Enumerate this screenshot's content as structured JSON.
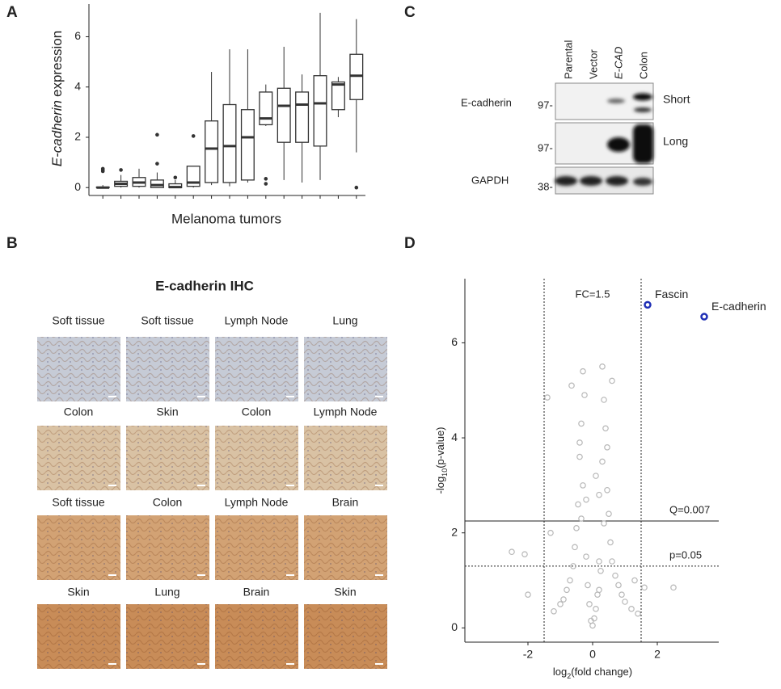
{
  "panels": [
    "A",
    "B",
    "C",
    "D"
  ],
  "chart_data": [
    {
      "type": "box",
      "xlabel": "Melanoma tumors",
      "ylabel": [
        "E-cadherin",
        "expression"
      ],
      "categories": [
        null,
        null,
        null,
        null,
        null,
        null,
        null,
        null,
        null,
        null,
        null,
        null,
        null,
        null,
        null
      ],
      "color": "#333333",
      "ylim": [
        -0.25,
        7.3
      ],
      "yticks": [
        0,
        2,
        4,
        6
      ],
      "boxes": [
        {
          "min": 0,
          "q1": 0,
          "median": 0,
          "q3": 0.02,
          "max": 0.1,
          "outliers": [
            0.65,
            0.7,
            0.75
          ]
        },
        {
          "min": 0,
          "q1": 0.05,
          "median": 0.15,
          "q3": 0.25,
          "max": 0.5,
          "outliers": [
            0.7
          ]
        },
        {
          "min": 0,
          "q1": 0.05,
          "median": 0.2,
          "q3": 0.4,
          "max": 0.75,
          "outliers": []
        },
        {
          "min": 0,
          "q1": 0,
          "median": 0.1,
          "q3": 0.3,
          "max": 0.6,
          "outliers": [
            0.95,
            2.1
          ]
        },
        {
          "min": 0,
          "q1": 0,
          "median": 0.02,
          "q3": 0.15,
          "max": 0.3,
          "outliers": [
            0.4
          ]
        },
        {
          "min": 0,
          "q1": 0.05,
          "median": 0.2,
          "q3": 0.85,
          "max": 0.85,
          "outliers": [
            2.05
          ]
        },
        {
          "min": 0.1,
          "q1": 0.2,
          "median": 1.55,
          "q3": 2.65,
          "max": 4.6,
          "outliers": []
        },
        {
          "min": 0.05,
          "q1": 0.2,
          "median": 1.65,
          "q3": 3.3,
          "max": 5.5,
          "outliers": []
        },
        {
          "min": 0.2,
          "q1": 0.3,
          "median": 2.0,
          "q3": 3.1,
          "max": 5.5,
          "outliers": []
        },
        {
          "min": 2.45,
          "q1": 2.5,
          "median": 2.75,
          "q3": 3.8,
          "max": 4.1,
          "outliers": [
            0.15,
            0.35
          ]
        },
        {
          "min": 0.3,
          "q1": 1.8,
          "median": 3.25,
          "q3": 3.95,
          "max": 5.6,
          "outliers": []
        },
        {
          "min": 0.2,
          "q1": 1.8,
          "median": 3.3,
          "q3": 3.8,
          "max": 4.5,
          "outliers": []
        },
        {
          "min": 0.3,
          "q1": 1.65,
          "median": 3.35,
          "q3": 4.45,
          "max": 6.95,
          "outliers": []
        },
        {
          "min": 2.8,
          "q1": 3.1,
          "median": 4.1,
          "q3": 4.2,
          "max": 4.4,
          "outliers": []
        },
        {
          "min": 1.4,
          "q1": 3.5,
          "median": 4.45,
          "q3": 5.3,
          "max": 6.7,
          "outliers": [
            0
          ]
        }
      ]
    },
    {
      "type": "scatter",
      "xlabel": [
        "log",
        "2",
        "(fold change)"
      ],
      "ylabel": [
        "-log",
        "10",
        "(p-value)"
      ],
      "xlim": [
        -3.95,
        3.9
      ],
      "ylim": [
        -0.3,
        7.35
      ],
      "xticks": [
        -2,
        0,
        2
      ],
      "yticks": [
        0,
        2,
        4,
        6
      ],
      "vlines": [
        -1.5,
        1.5
      ],
      "vline_label": "FC=1.5",
      "hlines": [
        {
          "value": 2.25,
          "label": "Q=0.007",
          "style": "solid"
        },
        {
          "value": 1.3,
          "label": "p=0.05",
          "style": "dashed"
        }
      ],
      "series": [
        {
          "color": "#b8b8b8",
          "x": [
            -0.3,
            -0.25,
            -0.35,
            -0.4,
            -0.3,
            -0.45,
            -0.5,
            -0.55,
            -0.35,
            -0.6,
            -0.7,
            -0.8,
            -0.9,
            -1.0,
            -1.2,
            -0.2,
            -0.1,
            0,
            0.1,
            0.2,
            0.05,
            -0.05,
            0.3,
            0.35,
            0.4,
            0.3,
            0.45,
            0.5,
            0.35,
            0.55,
            0.6,
            0.7,
            0.8,
            0.9,
            1.0,
            1.2,
            1.4,
            0.25,
            0.2,
            -0.15,
            0.15,
            -0.4,
            0.45,
            -1.4,
            -2.5,
            -2.1,
            -2.0,
            2.5,
            -1.3,
            1.6,
            0.2,
            0.1,
            -0.2,
            0.6,
            -0.65,
            1.3
          ],
          "y": [
            5.4,
            4.9,
            4.3,
            3.6,
            3.0,
            2.6,
            2.1,
            1.7,
            2.3,
            1.3,
            1.0,
            0.8,
            0.6,
            0.5,
            0.35,
            1.5,
            0.5,
            0.05,
            0.4,
            1.4,
            0.2,
            0.15,
            5.5,
            4.8,
            4.2,
            3.5,
            2.9,
            2.4,
            2.2,
            1.8,
            1.4,
            1.1,
            0.9,
            0.7,
            0.55,
            0.4,
            0.3,
            1.2,
            0.8,
            0.9,
            0.7,
            3.9,
            3.8,
            4.85,
            1.6,
            1.55,
            0.7,
            0.85,
            2.0,
            0.85,
            2.8,
            3.2,
            2.7,
            5.2,
            5.1,
            1.0
          ]
        },
        {
          "name": "Fascin",
          "color": "#1f2fb5",
          "x": [
            1.7
          ],
          "y": [
            6.8
          ]
        },
        {
          "name": "E-cadherin",
          "color": "#1f2fb5",
          "x": [
            3.45
          ],
          "y": [
            6.55
          ]
        }
      ]
    }
  ],
  "ihc": {
    "title": "E-cadherin IHC",
    "tiles": [
      "Soft tissue",
      "Soft tissue",
      "Lymph Node",
      "Lung",
      "Colon",
      "Skin",
      "Colon",
      "Lymph Node",
      "Soft tissue",
      "Colon",
      "Lymph Node",
      "Brain",
      "Skin",
      "Lung",
      "Brain",
      "Skin"
    ]
  },
  "western_blot": {
    "lanes": [
      "Parental",
      "Vector",
      "E-CAD",
      "Colon"
    ],
    "antibodies": [
      {
        "label": "E-cadherin",
        "exposures": [
          {
            "name": "Short",
            "marker": "97-"
          },
          {
            "name": "Long",
            "marker": "97-"
          }
        ]
      },
      {
        "label": "GAPDH",
        "exposures": [
          {
            "marker": "38-"
          }
        ]
      }
    ]
  }
}
